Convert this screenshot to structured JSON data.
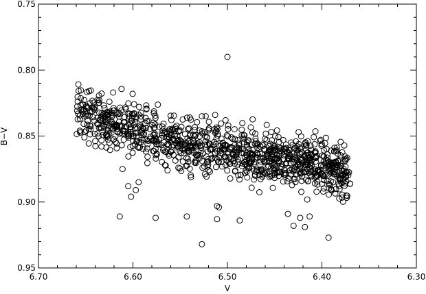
{
  "chart_data": {
    "type": "scatter",
    "title": "",
    "xlabel": "V",
    "ylabel": "B−V",
    "xlim": [
      6.7,
      6.3
    ],
    "ylim": [
      0.75,
      0.95
    ],
    "x_reversed": true,
    "y_reversed": true,
    "grid": false,
    "marker": "open-circle",
    "marker_color": "#000000",
    "x_ticks": [
      "6.70",
      "6.60",
      "6.50",
      "6.40",
      "6.30"
    ],
    "y_ticks": [
      "0.75",
      "0.80",
      "0.85",
      "0.90",
      "0.95"
    ],
    "outliers": [
      {
        "x": 6.5,
        "y": 0.79
      },
      {
        "x": 6.621,
        "y": 0.817
      },
      {
        "x": 6.527,
        "y": 0.932
      },
      {
        "x": 6.393,
        "y": 0.927
      },
      {
        "x": 6.614,
        "y": 0.911
      },
      {
        "x": 6.576,
        "y": 0.912
      },
      {
        "x": 6.543,
        "y": 0.911
      },
      {
        "x": 6.511,
        "y": 0.913
      },
      {
        "x": 6.487,
        "y": 0.914
      },
      {
        "x": 6.423,
        "y": 0.912
      },
      {
        "x": 6.43,
        "y": 0.918
      },
      {
        "x": 6.418,
        "y": 0.919
      },
      {
        "x": 6.436,
        "y": 0.909
      },
      {
        "x": 6.413,
        "y": 0.911
      },
      {
        "x": 6.509,
        "y": 0.904
      },
      {
        "x": 6.511,
        "y": 0.903
      },
      {
        "x": 6.502,
        "y": 0.838
      },
      {
        "x": 6.527,
        "y": 0.835
      },
      {
        "x": 6.513,
        "y": 0.834
      },
      {
        "x": 6.658,
        "y": 0.833
      },
      {
        "x": 6.653,
        "y": 0.826
      },
      {
        "x": 6.611,
        "y": 0.875
      },
      {
        "x": 6.605,
        "y": 0.888
      },
      {
        "x": 6.602,
        "y": 0.896
      },
      {
        "x": 6.597,
        "y": 0.891
      },
      {
        "x": 6.594,
        "y": 0.885
      }
    ],
    "bulk_trend": [
      {
        "x": 6.66,
        "y": 0.833
      },
      {
        "x": 6.6,
        "y": 0.845
      },
      {
        "x": 6.55,
        "y": 0.855
      },
      {
        "x": 6.5,
        "y": 0.862
      },
      {
        "x": 6.45,
        "y": 0.868
      },
      {
        "x": 6.4,
        "y": 0.874
      },
      {
        "x": 6.37,
        "y": 0.878
      }
    ],
    "bulk_x_range": [
      6.66,
      6.37
    ],
    "bulk_spread": 0.012,
    "bulk_count": 1100
  }
}
